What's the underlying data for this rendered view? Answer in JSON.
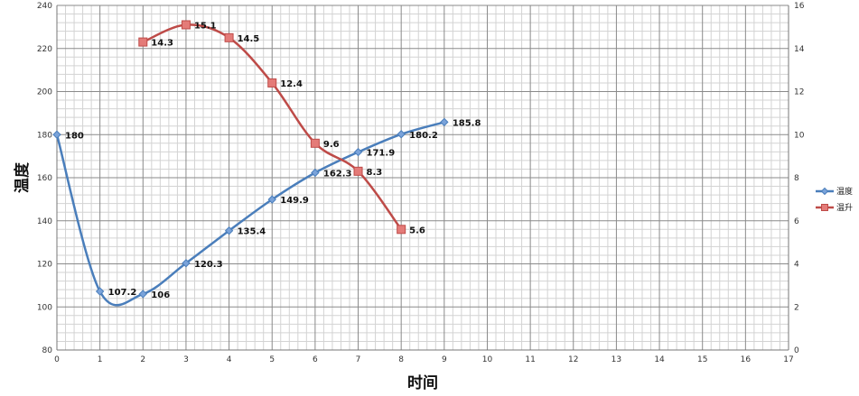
{
  "chart_data": {
    "type": "line",
    "xlabel": "时间",
    "ylabel": "温度",
    "xlim": [
      0,
      17
    ],
    "ylim": [
      80,
      240
    ],
    "y2lim": [
      0,
      16
    ],
    "xticks": [
      0,
      1,
      2,
      3,
      4,
      5,
      6,
      7,
      8,
      9,
      10,
      11,
      12,
      13,
      14,
      15,
      16,
      17
    ],
    "yticks": [
      80,
      100,
      120,
      140,
      160,
      180,
      200,
      220,
      240
    ],
    "y2ticks": [
      0,
      2,
      4,
      6,
      8,
      10,
      12,
      14,
      16
    ],
    "grid": true,
    "legend_position": "right",
    "series": [
      {
        "name": "温度",
        "axis": "left",
        "color": "#4a7ebb",
        "marker": "diamond",
        "smooth": true,
        "x": [
          0,
          1,
          2,
          3,
          4,
          5,
          6,
          7,
          8,
          9
        ],
        "values": [
          180,
          107.2,
          106,
          120.3,
          135.4,
          149.9,
          162.3,
          171.9,
          180.2,
          185.8
        ],
        "labels": [
          "180",
          "107.2",
          "106",
          "120.3",
          "135.4",
          "149.9",
          "162.3",
          "171.9",
          "180.2",
          "185.8"
        ]
      },
      {
        "name": "温升",
        "axis": "right",
        "color": "#be4b48",
        "marker": "square",
        "smooth": true,
        "x": [
          2,
          3,
          4,
          5,
          6,
          7,
          8
        ],
        "values": [
          14.3,
          15.1,
          14.5,
          12.4,
          9.6,
          8.3,
          5.6
        ],
        "labels": [
          "14.3",
          "15.1",
          "14.5",
          "12.4",
          "9.6",
          "8.3",
          "5.6"
        ]
      }
    ]
  }
}
